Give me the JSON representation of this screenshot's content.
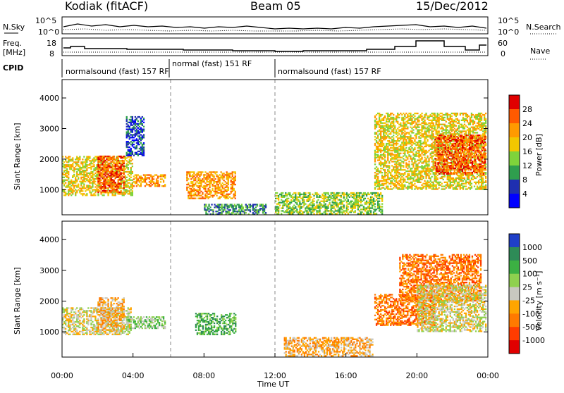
{
  "header": {
    "station": "Kodiak (fitACF)",
    "beam": "Beam 05",
    "date": "15/Dec/2012"
  },
  "summary": {
    "nsky_label": "N.Sky",
    "nsearch_label": "N.Search",
    "nsky_ticks": [
      "10^5",
      "10^0"
    ],
    "nsearch_ticks": [
      "10^5",
      "10^0"
    ],
    "freq_label_1": "Freq.",
    "freq_label_2": "[MHz]",
    "freq_ticks": [
      "18",
      "8"
    ],
    "nave_label": "Nave",
    "nave_ticks": [
      "60",
      "0"
    ],
    "cpid_label": "CPID",
    "cpid_segments": [
      {
        "label": "normalsound (fast) 157 RF",
        "start_h": 0,
        "end_h": 6
      },
      {
        "label": "normal (fast) 151 RF",
        "start_h": 6,
        "end_h": 12
      },
      {
        "label": "normalsound (fast) 157 RF",
        "start_h": 12,
        "end_h": 24
      }
    ]
  },
  "chart_data": [
    {
      "type": "heatmap",
      "panel": "power",
      "ylabel": "Slant Range [km]",
      "xlim": [
        0,
        24
      ],
      "ylim": [
        180,
        4600
      ],
      "yticks": [
        1000,
        2000,
        3000,
        4000
      ],
      "colorbar_label": "Power [dB]",
      "colorbar_ticks": [
        "28",
        "24",
        "20",
        "16",
        "12",
        "8",
        "4"
      ],
      "colorbar_colors": [
        "#e00000",
        "#ff5a00",
        "#ff9a00",
        "#f2c700",
        "#7fd33b",
        "#2f9e4e",
        "#1f2fb0",
        "#0000ff"
      ],
      "blobs": [
        {
          "t0": 0.0,
          "t1": 4.0,
          "r0": 800,
          "r1": 2100,
          "level": 4
        },
        {
          "t0": 2.0,
          "t1": 3.5,
          "r0": 900,
          "r1": 2100,
          "level": 6
        },
        {
          "t0": 3.6,
          "t1": 4.6,
          "r0": 2100,
          "r1": 3400,
          "level": 1
        },
        {
          "t0": 4.0,
          "t1": 5.8,
          "r0": 1100,
          "r1": 1500,
          "level": 5
        },
        {
          "t0": 7.0,
          "t1": 9.8,
          "r0": 700,
          "r1": 1600,
          "level": 5
        },
        {
          "t0": 8.0,
          "t1": 11.5,
          "r0": 180,
          "r1": 500,
          "level": 2
        },
        {
          "t0": 12.0,
          "t1": 18.0,
          "r0": 200,
          "r1": 900,
          "level": 3
        },
        {
          "t0": 17.6,
          "t1": 23.9,
          "r0": 1000,
          "r1": 3500,
          "level": 4
        },
        {
          "t0": 21.0,
          "t1": 23.8,
          "r0": 1500,
          "r1": 2800,
          "level": 6
        }
      ]
    },
    {
      "type": "heatmap",
      "panel": "velocity",
      "ylabel": "Slant Range [km]",
      "xlabel": "Time UT",
      "xlim": [
        0,
        24
      ],
      "ylim": [
        180,
        4600
      ],
      "yticks": [
        1000,
        2000,
        3000,
        4000
      ],
      "xticks": [
        "00:00",
        "04:00",
        "08:00",
        "12:00",
        "16:00",
        "20:00",
        "00:00"
      ],
      "colorbar_label": "Velocity [m s⁻¹]",
      "colorbar_ticks": [
        "1000",
        "500",
        "100",
        "25",
        "-25",
        "-100",
        "-500",
        "-1000"
      ],
      "colorbar_colors": [
        "#1f3fc8",
        "#2e8b57",
        "#3cb043",
        "#8fd14f",
        "#c8c8c0",
        "#ffa500",
        "#ff7a00",
        "#ff3c00",
        "#e00000"
      ],
      "blobs": [
        {
          "t0": 0.0,
          "t1": 3.9,
          "r0": 900,
          "r1": 1800,
          "level": 4
        },
        {
          "t0": 2.0,
          "t1": 3.5,
          "r0": 1000,
          "r1": 2100,
          "level": 5
        },
        {
          "t0": 3.6,
          "t1": 5.8,
          "r0": 1100,
          "r1": 1500,
          "level": 3
        },
        {
          "t0": 7.5,
          "t1": 9.8,
          "r0": 900,
          "r1": 1600,
          "level": 2
        },
        {
          "t0": 12.5,
          "t1": 17.5,
          "r0": 200,
          "r1": 800,
          "level": 5
        },
        {
          "t0": 17.6,
          "t1": 21.0,
          "r0": 1200,
          "r1": 2200,
          "level": 6
        },
        {
          "t0": 19.0,
          "t1": 23.6,
          "r0": 2000,
          "r1": 3500,
          "level": 6
        },
        {
          "t0": 20.0,
          "t1": 23.9,
          "r0": 1000,
          "r1": 2500,
          "level": 4
        }
      ]
    }
  ]
}
